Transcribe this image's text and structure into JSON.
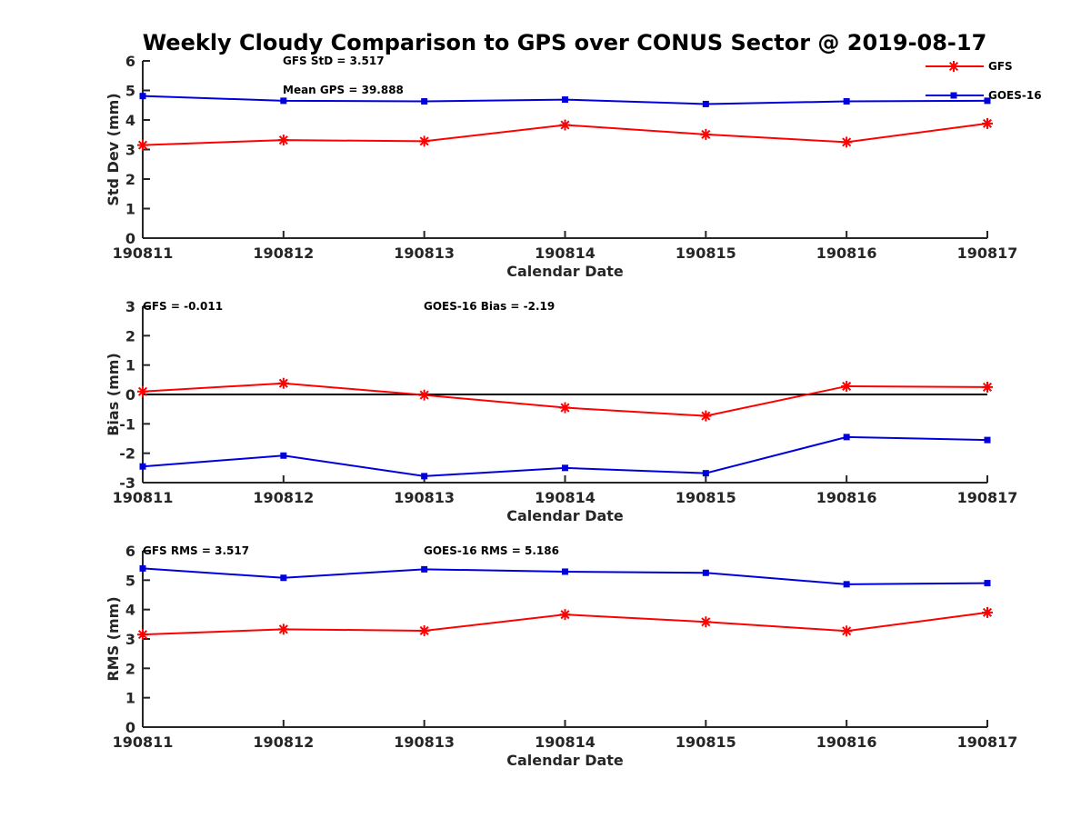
{
  "figure": {
    "title": "Weekly Cloudy Comparison to GPS over CONUS Sector @ 2019-08-17"
  },
  "colors": {
    "GFS": "#ff0000",
    "GOES-16": "#0000dd",
    "zero_line": "#000000"
  },
  "legend": {
    "placement": "top-right",
    "entries": [
      {
        "name": "GFS",
        "marker": "asterisk",
        "color": "#ff0000"
      },
      {
        "name": "GOES-16",
        "marker": "square",
        "color": "#0000dd"
      }
    ]
  },
  "chart_data": [
    {
      "type": "line",
      "xlabel": "Calendar Date",
      "ylabel": "Std Dev (mm)",
      "categories": [
        "190811",
        "190812",
        "190813",
        "190814",
        "190815",
        "190816",
        "190817"
      ],
      "ylim": [
        0,
        6
      ],
      "yticks": [
        0,
        1,
        2,
        3,
        4,
        5,
        6
      ],
      "grid": false,
      "series": [
        {
          "name": "GFS",
          "values": [
            3.15,
            3.32,
            3.28,
            3.83,
            3.51,
            3.25,
            3.88
          ]
        },
        {
          "name": "GOES-16",
          "values": [
            4.81,
            4.65,
            4.63,
            4.69,
            4.54,
            4.63,
            4.65
          ]
        }
      ],
      "annotations": [
        "GFS StD = 3.517",
        "Mean GPS = 39.888"
      ]
    },
    {
      "type": "line",
      "xlabel": "Calendar Date",
      "ylabel": "Bias (mm)",
      "categories": [
        "190811",
        "190812",
        "190813",
        "190814",
        "190815",
        "190816",
        "190817"
      ],
      "ylim": [
        -3,
        3
      ],
      "yticks": [
        -3,
        -2,
        -1,
        0,
        1,
        2,
        3
      ],
      "grid": false,
      "reference_line": 0,
      "series": [
        {
          "name": "GFS",
          "values": [
            0.1,
            0.38,
            -0.02,
            -0.45,
            -0.73,
            0.28,
            0.25
          ]
        },
        {
          "name": "GOES-16",
          "values": [
            -2.45,
            -2.08,
            -2.78,
            -2.5,
            -2.68,
            -1.45,
            -1.55
          ]
        }
      ],
      "annotations": [
        "GFS = -0.011",
        "GOES-16 Bias  = -2.19"
      ]
    },
    {
      "type": "line",
      "xlabel": "Calendar Date",
      "ylabel": "RMS (mm)",
      "categories": [
        "190811",
        "190812",
        "190813",
        "190814",
        "190815",
        "190816",
        "190817"
      ],
      "ylim": [
        0,
        6
      ],
      "yticks": [
        0,
        1,
        2,
        3,
        4,
        5,
        6
      ],
      "grid": false,
      "series": [
        {
          "name": "GFS",
          "values": [
            3.15,
            3.33,
            3.28,
            3.83,
            3.58,
            3.27,
            3.9
          ]
        },
        {
          "name": "GOES-16",
          "values": [
            5.4,
            5.08,
            5.37,
            5.29,
            5.25,
            4.86,
            4.9
          ]
        }
      ],
      "annotations": [
        "GFS RMS = 3.517",
        "GOES-16 RMS = 5.186"
      ]
    }
  ]
}
